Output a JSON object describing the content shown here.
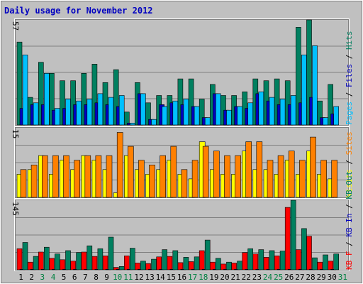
{
  "title": "Daily usage for November 2012",
  "colors": {
    "background": "#c0c0c0",
    "frame": "#ffffff",
    "plot": "#c0c0c0",
    "grid": "#808080",
    "title": "#0000c0",
    "day_weekday": "#000000",
    "day_weekend": "#008040",
    "axis_text": "#000000"
  },
  "chart_data": [
    {
      "type": "bar",
      "panel": "top",
      "axis_max_label": "57",
      "ylim": [
        0,
        57
      ],
      "side_label_parts": [
        {
          "text": "Pages",
          "color": "#00c0ff"
        },
        {
          "text": " / ",
          "color": "#000000"
        },
        {
          "text": "Files",
          "color": "#0000c0"
        },
        {
          "text": " / ",
          "color": "#000000"
        },
        {
          "text": "Hits",
          "color": "#008060"
        }
      ],
      "categories": [
        "1",
        "2",
        "3",
        "4",
        "5",
        "6",
        "7",
        "8",
        "9",
        "10",
        "11",
        "12",
        "13",
        "14",
        "15",
        "16",
        "17",
        "18",
        "19",
        "20",
        "21",
        "22",
        "23",
        "24",
        "25",
        "26",
        "27",
        "28",
        "29",
        "30",
        "31"
      ],
      "series": [
        {
          "name": "Hits",
          "color": "#008060",
          "values": [
            45,
            15,
            34,
            28,
            24,
            24,
            28,
            33,
            23,
            30,
            7,
            23,
            12,
            16,
            16,
            25,
            25,
            14,
            22,
            16,
            16,
            18,
            25,
            24,
            25,
            24,
            53,
            58,
            13,
            22,
            0
          ]
        },
        {
          "name": "Files",
          "color": "#0000c0",
          "values": [
            9,
            11,
            11,
            8,
            9,
            11,
            11,
            12,
            11,
            10,
            1,
            17,
            3,
            11,
            12,
            11,
            10,
            4,
            17,
            8,
            10,
            9,
            17,
            13,
            11,
            11,
            12,
            15,
            4,
            6,
            0
          ]
        },
        {
          "name": "Pages",
          "color": "#00c0ff",
          "values": [
            38,
            12,
            28,
            9,
            14,
            13,
            14,
            17,
            15,
            16,
            1,
            17,
            3,
            10,
            13,
            14,
            10,
            4,
            17,
            8,
            10,
            12,
            18,
            15,
            14,
            16,
            38,
            43,
            4,
            10,
            0
          ]
        }
      ]
    },
    {
      "type": "bar",
      "panel": "middle",
      "axis_max_label": "15",
      "ylim": [
        0,
        15
      ],
      "side_label_parts": [
        {
          "text": "Visits",
          "color": "#ffff00"
        },
        {
          "text": " / ",
          "color": "#000000"
        },
        {
          "text": "Sites",
          "color": "#ff8000"
        }
      ],
      "categories": [
        "1",
        "2",
        "3",
        "4",
        "5",
        "6",
        "7",
        "8",
        "9",
        "10",
        "11",
        "12",
        "13",
        "14",
        "15",
        "16",
        "17",
        "18",
        "19",
        "20",
        "21",
        "22",
        "23",
        "24",
        "25",
        "26",
        "27",
        "28",
        "29",
        "30",
        "31"
      ],
      "series": [
        {
          "name": "Visits",
          "color": "#ffff00",
          "values": [
            5,
            6,
            9,
            5,
            8,
            6,
            9,
            8,
            6,
            1,
            9,
            6,
            5,
            6,
            8,
            5,
            4,
            12,
            6,
            5,
            5,
            10,
            6,
            6,
            5,
            8,
            5,
            10,
            5,
            4,
            0
          ]
        },
        {
          "name": "Sites",
          "color": "#ff8000",
          "values": [
            6,
            7,
            9,
            9,
            9,
            8,
            9,
            9,
            9,
            14,
            11,
            8,
            7,
            9,
            11,
            6,
            8,
            11,
            10,
            9,
            9,
            12,
            12,
            8,
            9,
            10,
            8,
            13,
            8,
            8,
            0
          ]
        }
      ]
    },
    {
      "type": "bar",
      "panel": "bottom",
      "axis_max_label": "145",
      "ylim": [
        0,
        145
      ],
      "side_label_parts": [
        {
          "text": "KB F",
          "color": "#ff0000"
        },
        {
          "text": " / ",
          "color": "#000000"
        },
        {
          "text": "KB In",
          "color": "#0000c0"
        },
        {
          "text": " / ",
          "color": "#000000"
        },
        {
          "text": "KB Out",
          "color": "#008060"
        }
      ],
      "categories": [
        "1",
        "2",
        "3",
        "4",
        "5",
        "6",
        "7",
        "8",
        "9",
        "10",
        "11",
        "12",
        "13",
        "14",
        "15",
        "16",
        "17",
        "18",
        "19",
        "20",
        "21",
        "22",
        "23",
        "24",
        "25",
        "26",
        "27",
        "28",
        "29",
        "30",
        "31"
      ],
      "series": [
        {
          "name": "KB F",
          "color": "#ff0000",
          "values": [
            44,
            16,
            37,
            24,
            21,
            18,
            37,
            28,
            29,
            5,
            29,
            14,
            13,
            27,
            28,
            15,
            17,
            40,
            16,
            12,
            14,
            36,
            33,
            26,
            29,
            130,
            42,
            70,
            16,
            18,
            0
          ]
        },
        {
          "name": "KB In",
          "color": "#0000c0",
          "values": [
            1,
            1,
            1,
            1,
            1,
            1,
            1,
            1,
            1,
            1,
            1,
            1,
            1,
            1,
            1,
            1,
            1,
            1,
            1,
            1,
            1,
            1,
            1,
            1,
            1,
            1,
            1,
            1,
            1,
            1,
            0
          ]
        },
        {
          "name": "KB Out",
          "color": "#008060",
          "values": [
            57,
            28,
            47,
            33,
            40,
            36,
            50,
            44,
            68,
            7,
            45,
            18,
            22,
            42,
            40,
            26,
            27,
            62,
            24,
            16,
            18,
            44,
            42,
            40,
            39,
            146,
            86,
            25,
            31,
            33,
            0
          ]
        }
      ]
    }
  ],
  "days": [
    {
      "label": "1",
      "weekend": false
    },
    {
      "label": "2",
      "weekend": false
    },
    {
      "label": "3",
      "weekend": true
    },
    {
      "label": "4",
      "weekend": true
    },
    {
      "label": "5",
      "weekend": false
    },
    {
      "label": "6",
      "weekend": false
    },
    {
      "label": "7",
      "weekend": false
    },
    {
      "label": "8",
      "weekend": false
    },
    {
      "label": "9",
      "weekend": false
    },
    {
      "label": "10",
      "weekend": true
    },
    {
      "label": "11",
      "weekend": true
    },
    {
      "label": "12",
      "weekend": false
    },
    {
      "label": "13",
      "weekend": false
    },
    {
      "label": "14",
      "weekend": false
    },
    {
      "label": "15",
      "weekend": false
    },
    {
      "label": "16",
      "weekend": false
    },
    {
      "label": "17",
      "weekend": true
    },
    {
      "label": "18",
      "weekend": true
    },
    {
      "label": "19",
      "weekend": false
    },
    {
      "label": "20",
      "weekend": false
    },
    {
      "label": "21",
      "weekend": false
    },
    {
      "label": "22",
      "weekend": false
    },
    {
      "label": "23",
      "weekend": false
    },
    {
      "label": "24",
      "weekend": true
    },
    {
      "label": "25",
      "weekend": true
    },
    {
      "label": "26",
      "weekend": false
    },
    {
      "label": "27",
      "weekend": false
    },
    {
      "label": "28",
      "weekend": false
    },
    {
      "label": "29",
      "weekend": false
    },
    {
      "label": "30",
      "weekend": false
    },
    {
      "label": "31",
      "weekend": true
    }
  ]
}
